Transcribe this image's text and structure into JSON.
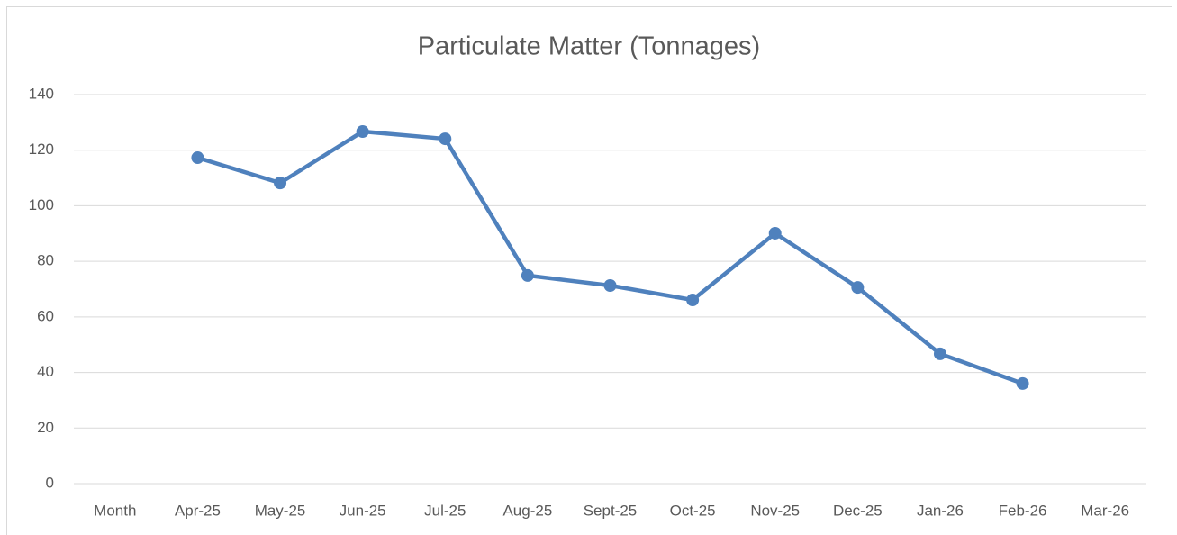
{
  "chart_data": {
    "type": "line",
    "title": "Particulate Matter (Tonnages)",
    "categories": [
      "Month",
      "Apr-25",
      "May-25",
      "Jun-25",
      "Jul-25",
      "Aug-25",
      "Sept-25",
      "Oct-25",
      "Nov-25",
      "Dec-25",
      "Jan-26",
      "Feb-26",
      "Mar-26"
    ],
    "values": [
      null,
      117.3,
      108.2,
      126.7,
      124.1,
      74.9,
      71.3,
      66.1,
      90.1,
      70.6,
      46.7,
      36.0,
      null
    ],
    "color": "#4f81bd",
    "ylim": [
      0,
      140
    ],
    "yticks": [
      0,
      20,
      40,
      60,
      80,
      100,
      120,
      140
    ],
    "grid": true
  }
}
